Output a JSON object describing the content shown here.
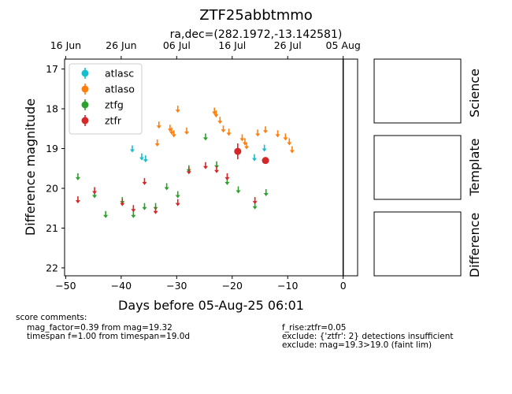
{
  "chart_data": {
    "type": "scatter",
    "title": "ZTF25abbtmmo",
    "subtitle": "ra,dec=(282.1972,-13.142581)",
    "xlabel": "Days before 05-Aug-25 06:01",
    "ylabel": "Difference magnitude",
    "xlim": [
      -50.2,
      2.6
    ],
    "ylim": [
      22.2,
      16.75
    ],
    "x_ticks": [
      -50,
      -40,
      -30,
      -20,
      -10,
      0
    ],
    "y_ticks": [
      17,
      18,
      19,
      20,
      21,
      22
    ],
    "top_axis_labels": [
      {
        "x": -50,
        "label": "16 Jun"
      },
      {
        "x": -40,
        "label": "26 Jun"
      },
      {
        "x": -30,
        "label": "06 Jul"
      },
      {
        "x": -20,
        "label": "16 Jul"
      },
      {
        "x": -10,
        "label": "26 Jul"
      },
      {
        "x": 0,
        "label": "05 Aug"
      }
    ],
    "vline_x": 0,
    "legend_position": "upper-left",
    "series": [
      {
        "name": "atlasc",
        "color": "#17becf",
        "upper_limits": [
          [
            -38,
            19.0
          ],
          [
            -36.3,
            19.2
          ],
          [
            -35.6,
            19.25
          ],
          [
            -16,
            19.22
          ],
          [
            -14.2,
            18.98
          ]
        ],
        "detections": []
      },
      {
        "name": "atlaso",
        "color": "#ff7f0e",
        "upper_limits": [
          [
            -33.5,
            18.85
          ],
          [
            -33.2,
            18.4
          ],
          [
            -31.2,
            18.48
          ],
          [
            -30.9,
            18.55
          ],
          [
            -30.5,
            18.62
          ],
          [
            -29.8,
            18.0
          ],
          [
            -28.2,
            18.55
          ],
          [
            -23.2,
            18.05
          ],
          [
            -22.9,
            18.12
          ],
          [
            -22.2,
            18.28
          ],
          [
            -21.6,
            18.5
          ],
          [
            -20.6,
            18.58
          ],
          [
            -18.2,
            18.72
          ],
          [
            -17.7,
            18.82
          ],
          [
            -17.4,
            18.92
          ],
          [
            -15.4,
            18.6
          ],
          [
            -14,
            18.52
          ],
          [
            -11.8,
            18.62
          ],
          [
            -10.4,
            18.7
          ],
          [
            -9.7,
            18.82
          ],
          [
            -9.2,
            19.02
          ]
        ],
        "detections": []
      },
      {
        "name": "ztfg",
        "color": "#2ca02c",
        "upper_limits": [
          [
            -47.8,
            19.7
          ],
          [
            -44.8,
            20.15
          ],
          [
            -42.8,
            20.65
          ],
          [
            -39.8,
            20.3
          ],
          [
            -37.8,
            20.65
          ],
          [
            -35.8,
            20.45
          ],
          [
            -33.8,
            20.45
          ],
          [
            -31.8,
            19.95
          ],
          [
            -29.8,
            20.15
          ],
          [
            -27.8,
            19.5
          ],
          [
            -24.8,
            18.7
          ],
          [
            -22.8,
            19.4
          ],
          [
            -20.9,
            19.82
          ],
          [
            -18.9,
            20.03
          ],
          [
            -15.9,
            20.43
          ],
          [
            -13.9,
            20.1
          ]
        ],
        "detections": []
      },
      {
        "name": "ztfr",
        "color": "#d62728",
        "upper_limits": [
          [
            -47.8,
            20.28
          ],
          [
            -44.8,
            20.05
          ],
          [
            -39.8,
            20.35
          ],
          [
            -37.8,
            20.5
          ],
          [
            -35.8,
            19.82
          ],
          [
            -33.8,
            20.55
          ],
          [
            -29.8,
            20.35
          ],
          [
            -27.8,
            19.55
          ],
          [
            -24.8,
            19.42
          ],
          [
            -22.8,
            19.52
          ],
          [
            -20.9,
            19.7
          ],
          [
            -15.9,
            20.3
          ]
        ],
        "detections": [
          {
            "x": -19,
            "y": 19.07,
            "err": 0.2
          },
          {
            "x": -14,
            "y": 19.3,
            "err": 0.06
          }
        ]
      }
    ],
    "stamps": [
      "Science",
      "Template",
      "Difference"
    ]
  },
  "comments": {
    "heading": "score comments:",
    "left": [
      "mag_factor=0.39 from mag=19.32",
      "timespan f=1.00 from timespan=19.0d"
    ],
    "right": [
      "f_rise:ztfr=0.05",
      "exclude: {'ztfr': 2} detections insufficient",
      "exclude: mag=19.3>19.0 (faint lim)"
    ]
  }
}
